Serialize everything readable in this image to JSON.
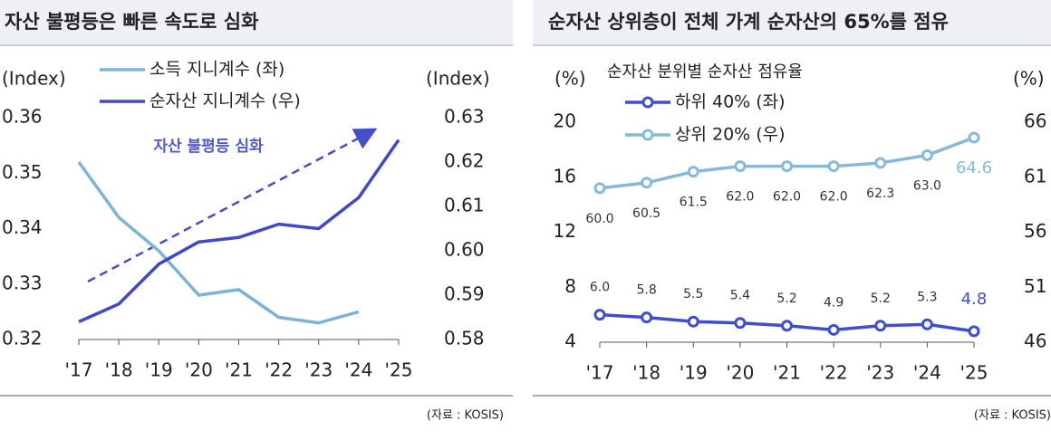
{
  "chart_data": [
    {
      "type": "line",
      "title": "자산 불평등은 빠른 속도로 심화",
      "y_label": "(Index)",
      "y2_label": "(Index)",
      "categories": [
        "'17",
        "'18",
        "'19",
        "'20",
        "'21",
        "'22",
        "'23",
        "'24",
        "'25"
      ],
      "ylim": [
        0.32,
        0.36
      ],
      "yticks": [
        0.32,
        0.33,
        0.34,
        0.35,
        0.36
      ],
      "y2lim": [
        0.58,
        0.63
      ],
      "y2ticks": [
        0.58,
        0.59,
        {
          "value": 0.6,
          "label": "0.60"
        },
        0.61,
        0.62,
        0.63
      ],
      "series": [
        {
          "name": "소득 지니계수 (좌)",
          "color": "#7db3d6",
          "axis": "y",
          "values": [
            0.352,
            0.342,
            0.336,
            0.328,
            0.329,
            0.324,
            0.323,
            0.325,
            null
          ]
        },
        {
          "name": "순자산 지니계수 (우)",
          "color": "#4148c9",
          "axis": "y2",
          "values": [
            0.584,
            0.588,
            0.597,
            0.602,
            0.603,
            0.606,
            0.605,
            0.612,
            0.625
          ]
        }
      ],
      "annotation": "자산 불평등 심화",
      "source": "(자료 : KOSIS)"
    },
    {
      "type": "line",
      "title": "순자산 상위층이 전체 가계 순자산의 65%를 점유",
      "subtitle": "순자산 분위별 순자산 점유율",
      "y_label": "(%)",
      "y2_label": "(%)",
      "categories": [
        "'17",
        "'18",
        "'19",
        "'20",
        "'21",
        "'22",
        "'23",
        "'24",
        "'25"
      ],
      "ylim": [
        4,
        20
      ],
      "yticks": [
        4,
        8,
        12,
        16,
        20
      ],
      "y2lim": [
        46,
        66
      ],
      "y2ticks": [
        46,
        51,
        56,
        61,
        66
      ],
      "marker": "circle",
      "series": [
        {
          "name": "하위 40% (좌)",
          "color": "#3f4dcf",
          "axis": "y",
          "values": [
            6.0,
            5.8,
            5.5,
            5.4,
            5.2,
            4.9,
            5.2,
            5.3,
            4.8
          ],
          "value_labels": [
            "6.0",
            "5.8",
            "5.5",
            "5.4",
            "5.2",
            "4.9",
            "5.2",
            "5.3",
            "4.8"
          ]
        },
        {
          "name": "상위 20% (우)",
          "color": "#86b9da",
          "axis": "y2",
          "values": [
            60.0,
            60.5,
            61.5,
            62.0,
            62.0,
            62.0,
            62.3,
            63.0,
            64.6
          ],
          "value_labels": [
            "60.0",
            "60.5",
            "61.5",
            "62.0",
            "62.0",
            "62.0",
            "62.3",
            "63.0",
            "64.6"
          ]
        }
      ],
      "source": "(자료 : KOSIS)"
    }
  ]
}
